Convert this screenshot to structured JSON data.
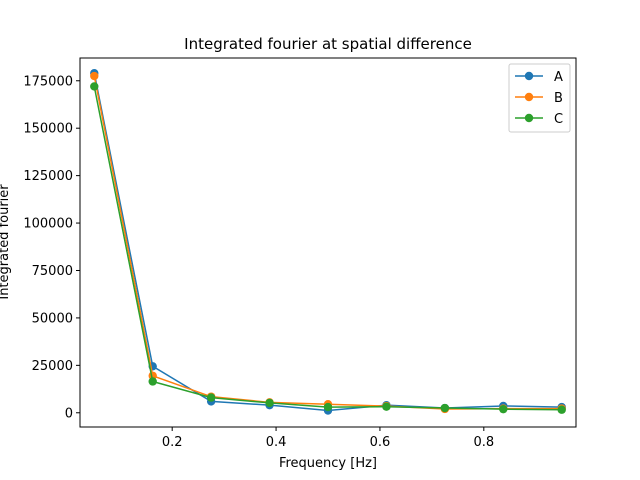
{
  "chart_data": {
    "type": "line",
    "title": "Integrated fourier at spatial difference",
    "xlabel": "Frequency [Hz]",
    "ylabel": "Integrated fourier",
    "xlim": [
      0.0225,
      0.9775
    ],
    "ylim": [
      -7500,
      187000
    ],
    "xticks": [
      0.2,
      0.4,
      0.6,
      0.8
    ],
    "xtick_labels": [
      "0.2",
      "0.4",
      "0.6",
      "0.8"
    ],
    "yticks": [
      0,
      25000,
      50000,
      75000,
      100000,
      125000,
      150000,
      175000
    ],
    "ytick_labels": [
      "0",
      "25000",
      "50000",
      "75000",
      "100000",
      "125000",
      "150000",
      "175000"
    ],
    "x": [
      0.05,
      0.1625,
      0.275,
      0.3875,
      0.5,
      0.6125,
      0.725,
      0.8375,
      0.95
    ],
    "series": [
      {
        "name": "A",
        "color": "#1f77b4",
        "values": [
          179000,
          24500,
          6000,
          4000,
          1200,
          4000,
          2500,
          3600,
          3000
        ]
      },
      {
        "name": "B",
        "color": "#ff7f0e",
        "values": [
          177500,
          19500,
          8500,
          5500,
          4500,
          3500,
          2000,
          2200,
          2200
        ]
      },
      {
        "name": "C",
        "color": "#2ca02c",
        "values": [
          172000,
          16500,
          8000,
          5200,
          3000,
          3200,
          2500,
          1900,
          1600
        ]
      }
    ],
    "legend": {
      "position": "top-right",
      "entries": [
        "A",
        "B",
        "C"
      ]
    },
    "grid": false
  }
}
